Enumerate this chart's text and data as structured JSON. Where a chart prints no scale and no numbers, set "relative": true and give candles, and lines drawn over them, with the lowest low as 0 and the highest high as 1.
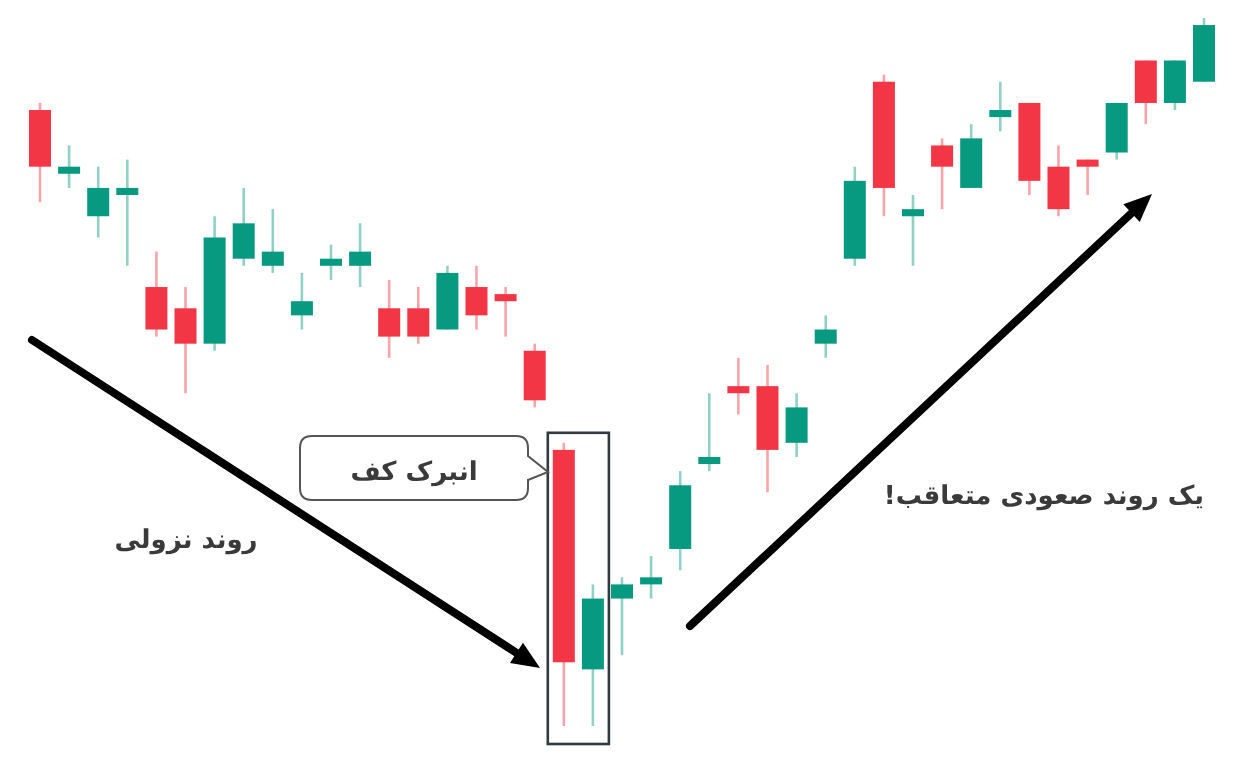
{
  "chart_data": {
    "type": "candlestick",
    "relative": true,
    "categories": [
      null,
      null,
      null,
      null,
      null,
      null,
      null,
      null,
      null,
      null,
      null,
      null,
      null,
      null,
      null,
      null,
      null,
      null,
      null,
      null,
      null,
      null,
      null,
      null,
      null,
      null,
      null,
      null,
      null,
      null,
      null,
      null,
      null,
      null,
      null,
      null,
      null,
      null,
      null,
      null,
      null
    ],
    "ohlc": [
      [
        0.87,
        0.88,
        0.74,
        0.79
      ],
      [
        0.78,
        0.82,
        0.76,
        0.79
      ],
      [
        0.72,
        0.79,
        0.69,
        0.76
      ],
      [
        0.75,
        0.8,
        0.65,
        0.76
      ],
      [
        0.62,
        0.67,
        0.55,
        0.56
      ],
      [
        0.59,
        0.62,
        0.47,
        0.54
      ],
      [
        0.54,
        0.72,
        0.53,
        0.69
      ],
      [
        0.66,
        0.76,
        0.65,
        0.71
      ],
      [
        0.65,
        0.73,
        0.64,
        0.67
      ],
      [
        0.58,
        0.64,
        0.56,
        0.6
      ],
      [
        0.65,
        0.68,
        0.63,
        0.66
      ],
      [
        0.65,
        0.71,
        0.62,
        0.67
      ],
      [
        0.59,
        0.63,
        0.52,
        0.55
      ],
      [
        0.59,
        0.62,
        0.54,
        0.55
      ],
      [
        0.56,
        0.65,
        0.56,
        0.64
      ],
      [
        0.62,
        0.65,
        0.56,
        0.58
      ],
      [
        0.61,
        0.62,
        0.55,
        0.6
      ],
      [
        0.53,
        0.54,
        0.45,
        0.46
      ],
      [
        0.39,
        0.4,
        0.0,
        0.09
      ],
      [
        0.08,
        0.2,
        0.0,
        0.18
      ],
      [
        0.18,
        0.21,
        0.1,
        0.2
      ],
      [
        0.2,
        0.24,
        0.18,
        0.21
      ],
      [
        0.25,
        0.36,
        0.22,
        0.34
      ],
      [
        0.37,
        0.47,
        0.36,
        0.38
      ],
      [
        0.48,
        0.52,
        0.44,
        0.47
      ],
      [
        0.48,
        0.51,
        0.33,
        0.39
      ],
      [
        0.4,
        0.47,
        0.38,
        0.45
      ],
      [
        0.54,
        0.58,
        0.52,
        0.56
      ],
      [
        0.66,
        0.79,
        0.65,
        0.77
      ],
      [
        0.91,
        0.92,
        0.72,
        0.76
      ],
      [
        0.72,
        0.75,
        0.65,
        0.73
      ],
      [
        0.82,
        0.83,
        0.73,
        0.79
      ],
      [
        0.76,
        0.85,
        0.76,
        0.83
      ],
      [
        0.86,
        0.91,
        0.84,
        0.87
      ],
      [
        0.88,
        0.88,
        0.75,
        0.77
      ],
      [
        0.79,
        0.82,
        0.72,
        0.73
      ],
      [
        0.8,
        0.8,
        0.75,
        0.79
      ],
      [
        0.81,
        0.88,
        0.8,
        0.88
      ],
      [
        0.94,
        0.94,
        0.85,
        0.88
      ],
      [
        0.88,
        0.94,
        0.87,
        0.94
      ],
      [
        0.91,
        1.0,
        0.91,
        0.99
      ]
    ],
    "annotations": [
      "روند نزولی",
      "انبرک کف",
      "یک روند صعودی متعاقب!"
    ]
  }
}
